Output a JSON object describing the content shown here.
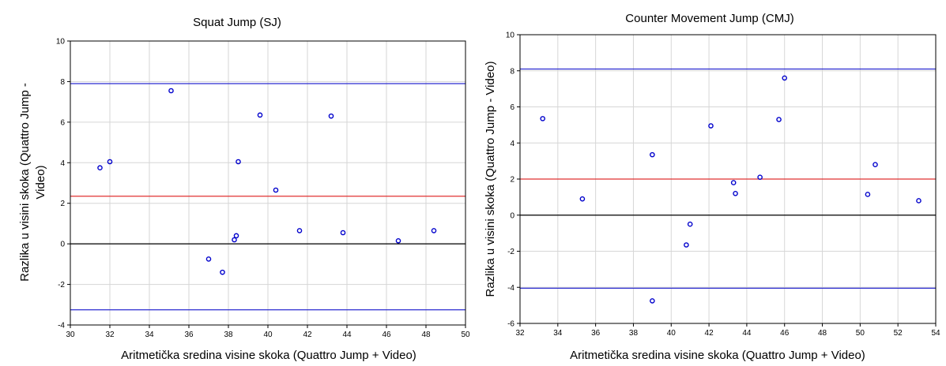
{
  "chart_data": [
    {
      "type": "scatter",
      "title": "Squat Jump (SJ)",
      "xlabel": "Aritmetička sredina visine skoka (Quattro Jump + Video)",
      "ylabel_line1": "Razlika u visini skoka (Quattro Jump -",
      "ylabel_line2": "Video)",
      "xlim": [
        30,
        50
      ],
      "ylim": [
        -4,
        10
      ],
      "xticks": [
        "30",
        "32",
        "34",
        "36",
        "38",
        "40",
        "42",
        "44",
        "46",
        "48",
        "50"
      ],
      "yticks": [
        "-4",
        "-2",
        "0",
        "2",
        "4",
        "6",
        "8",
        "10"
      ],
      "grid": true,
      "reference_lines": [
        {
          "y": 7.9,
          "color": "#2a2ad0"
        },
        {
          "y": 2.35,
          "color": "#e03030"
        },
        {
          "y": 0,
          "color": "#000000"
        },
        {
          "y": -3.25,
          "color": "#2a2ad0"
        }
      ],
      "points": [
        {
          "x": 31.5,
          "y": 3.75
        },
        {
          "x": 32.0,
          "y": 4.05
        },
        {
          "x": 35.1,
          "y": 7.55
        },
        {
          "x": 37.0,
          "y": -0.75
        },
        {
          "x": 37.7,
          "y": -1.4
        },
        {
          "x": 38.3,
          "y": 0.2
        },
        {
          "x": 38.4,
          "y": 0.4
        },
        {
          "x": 38.5,
          "y": 4.05
        },
        {
          "x": 39.6,
          "y": 6.35
        },
        {
          "x": 40.4,
          "y": 2.65
        },
        {
          "x": 41.6,
          "y": 0.65
        },
        {
          "x": 43.2,
          "y": 6.3
        },
        {
          "x": 43.8,
          "y": 0.55
        },
        {
          "x": 46.6,
          "y": 0.15
        },
        {
          "x": 48.4,
          "y": 0.65
        }
      ],
      "marker_color": "#0000cc"
    },
    {
      "type": "scatter",
      "title": "Counter Movement Jump (CMJ)",
      "xlabel": "Aritmetička sredina visine skoka (Quattro Jump + Video)",
      "ylabel_line1": "Razlika u visini skoka (Quattro Jump - Video)",
      "ylabel_line2": "",
      "xlim": [
        32,
        54
      ],
      "ylim": [
        -6,
        10
      ],
      "xticks": [
        "32",
        "34",
        "36",
        "38",
        "40",
        "42",
        "44",
        "46",
        "48",
        "50",
        "52",
        "54"
      ],
      "yticks": [
        "-6",
        "-4",
        "-2",
        "0",
        "2",
        "4",
        "6",
        "8",
        "10"
      ],
      "grid": true,
      "reference_lines": [
        {
          "y": 8.1,
          "color": "#2a2ad0"
        },
        {
          "y": 2.0,
          "color": "#e03030"
        },
        {
          "y": 0,
          "color": "#000000"
        },
        {
          "y": -4.05,
          "color": "#2a2ad0"
        }
      ],
      "points": [
        {
          "x": 33.2,
          "y": 5.35
        },
        {
          "x": 35.3,
          "y": 0.9
        },
        {
          "x": 39.0,
          "y": 3.35
        },
        {
          "x": 39.0,
          "y": -4.75
        },
        {
          "x": 40.8,
          "y": -1.65
        },
        {
          "x": 41.0,
          "y": -0.5
        },
        {
          "x": 42.1,
          "y": 4.95
        },
        {
          "x": 43.3,
          "y": 1.8
        },
        {
          "x": 43.4,
          "y": 1.2
        },
        {
          "x": 44.7,
          "y": 2.1
        },
        {
          "x": 45.7,
          "y": 5.3
        },
        {
          "x": 46.0,
          "y": 7.6
        },
        {
          "x": 50.4,
          "y": 1.15
        },
        {
          "x": 50.8,
          "y": 2.8
        },
        {
          "x": 53.1,
          "y": 0.8
        }
      ],
      "marker_color": "#0000cc"
    }
  ]
}
